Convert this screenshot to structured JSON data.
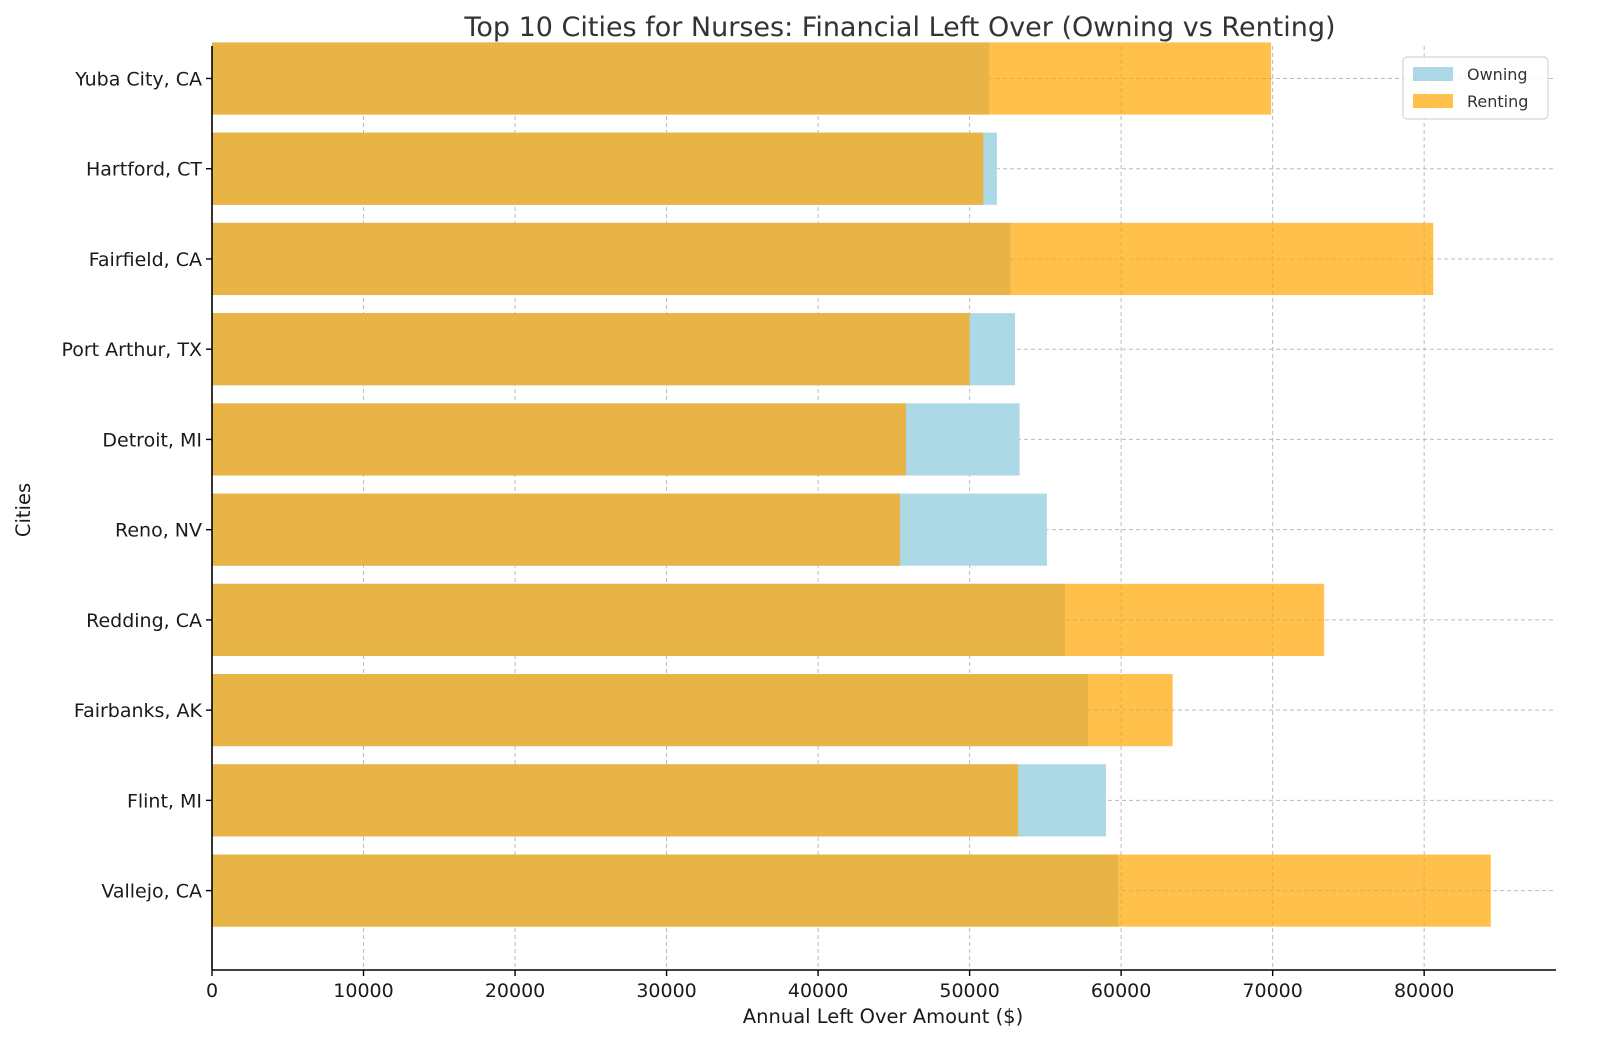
{
  "chart_data": {
    "type": "bar",
    "orientation": "horizontal",
    "title": "Top 10 Cities for Nurses: Financial Left Over (Owning vs Renting)",
    "xlabel": "Annual Left Over Amount ($)",
    "ylabel": "Cities",
    "categories": [
      "Vallejo, CA",
      "Flint, MI",
      "Fairbanks, AK",
      "Redding, CA",
      "Reno, NV",
      "Detroit, MI",
      "Port Arthur, TX",
      "Fairfield, CA",
      "Hartford, CT",
      "Yuba City, CA"
    ],
    "series": [
      {
        "name": "Owning",
        "color": "#add8e6",
        "values": [
          59800,
          59000,
          57800,
          56300,
          55100,
          53300,
          53000,
          52700,
          51800,
          51300
        ]
      },
      {
        "name": "Renting",
        "color": "#ffa500",
        "opacity": 0.7,
        "values": [
          84400,
          53200,
          63400,
          73400,
          45400,
          45800,
          50000,
          80600,
          50900,
          69900
        ]
      }
    ],
    "xlim": [
      0,
      88700
    ],
    "xticks": [
      0,
      10000,
      20000,
      30000,
      40000,
      50000,
      60000,
      70000,
      80000
    ],
    "grid": true,
    "legend_position": "top-right"
  }
}
